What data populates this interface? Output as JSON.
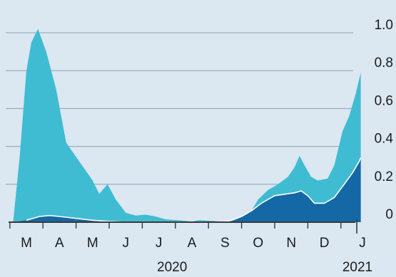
{
  "chart_data": {
    "type": "area",
    "stacked": false,
    "x_unit": "month-index (0 = start of March 2020)",
    "x_tick_labels": [
      "M",
      "A",
      "M",
      "J",
      "J",
      "A",
      "S",
      "O",
      "N",
      "D",
      "J"
    ],
    "year_labels": [
      "2020",
      "2021"
    ],
    "y_tick_labels": [
      "0",
      "0.2",
      "0.4",
      "0.6",
      "0.8",
      "1.0"
    ],
    "ylim": [
      0,
      1.0
    ],
    "xlim": [
      -0.4,
      10.3
    ],
    "grid": true,
    "legend": "none",
    "series": [
      {
        "color": "#3fbcd2",
        "points": [
          [
            -0.4,
            0.0
          ],
          [
            -0.2,
            0.35
          ],
          [
            0.0,
            0.8
          ],
          [
            0.15,
            0.95
          ],
          [
            0.35,
            1.02
          ],
          [
            0.6,
            0.9
          ],
          [
            0.9,
            0.7
          ],
          [
            1.2,
            0.42
          ],
          [
            1.6,
            0.32
          ],
          [
            2.0,
            0.22
          ],
          [
            2.2,
            0.15
          ],
          [
            2.45,
            0.2
          ],
          [
            2.7,
            0.12
          ],
          [
            3.0,
            0.05
          ],
          [
            3.3,
            0.035
          ],
          [
            3.6,
            0.04
          ],
          [
            3.9,
            0.03
          ],
          [
            4.2,
            0.015
          ],
          [
            4.6,
            0.01
          ],
          [
            5.0,
            0.003
          ],
          [
            5.2,
            0.01
          ],
          [
            5.5,
            0.008
          ],
          [
            5.9,
            0.003
          ],
          [
            6.2,
            0.01
          ],
          [
            6.5,
            0.03
          ],
          [
            6.8,
            0.06
          ],
          [
            7.0,
            0.12
          ],
          [
            7.3,
            0.17
          ],
          [
            7.6,
            0.2
          ],
          [
            7.9,
            0.24
          ],
          [
            8.1,
            0.29
          ],
          [
            8.25,
            0.35
          ],
          [
            8.4,
            0.3
          ],
          [
            8.6,
            0.24
          ],
          [
            8.8,
            0.22
          ],
          [
            9.1,
            0.23
          ],
          [
            9.3,
            0.3
          ],
          [
            9.55,
            0.48
          ],
          [
            9.75,
            0.56
          ],
          [
            9.95,
            0.68
          ],
          [
            10.1,
            0.79
          ],
          [
            10.1,
            0.0
          ]
        ]
      },
      {
        "color": "#1468a6",
        "points": [
          [
            -0.4,
            0.0
          ],
          [
            0.0,
            0.01
          ],
          [
            0.4,
            0.03
          ],
          [
            0.7,
            0.035
          ],
          [
            1.0,
            0.03
          ],
          [
            1.5,
            0.02
          ],
          [
            2.0,
            0.01
          ],
          [
            2.5,
            0.004
          ],
          [
            3.0,
            0.0
          ],
          [
            5.9,
            0.0
          ],
          [
            6.2,
            0.01
          ],
          [
            6.5,
            0.03
          ],
          [
            6.8,
            0.06
          ],
          [
            7.1,
            0.1
          ],
          [
            7.5,
            0.14
          ],
          [
            7.9,
            0.15
          ],
          [
            8.1,
            0.155
          ],
          [
            8.3,
            0.165
          ],
          [
            8.5,
            0.14
          ],
          [
            8.7,
            0.1
          ],
          [
            9.0,
            0.1
          ],
          [
            9.3,
            0.13
          ],
          [
            9.6,
            0.2
          ],
          [
            9.85,
            0.26
          ],
          [
            10.05,
            0.32
          ],
          [
            10.1,
            0.34
          ],
          [
            10.1,
            0.0
          ]
        ]
      }
    ]
  }
}
